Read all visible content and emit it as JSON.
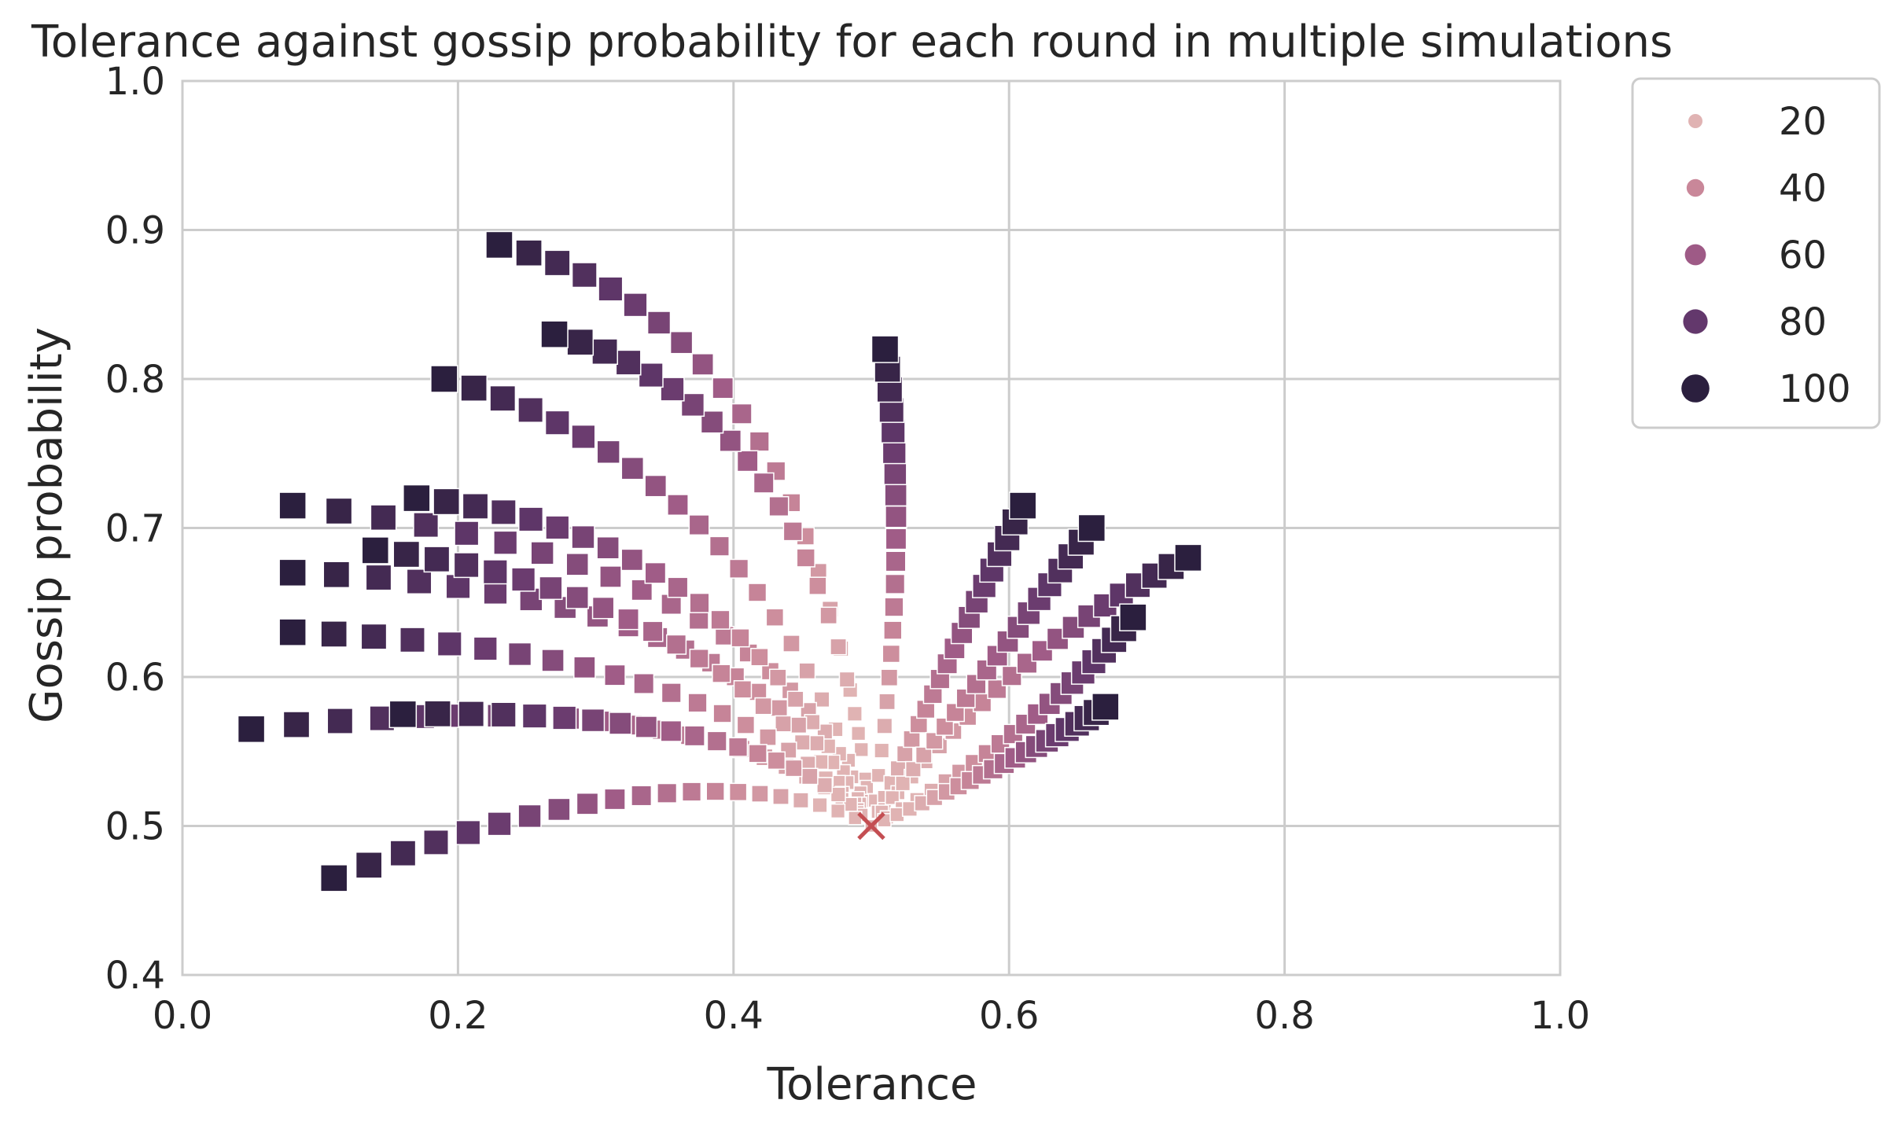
{
  "chart_data": {
    "type": "scatter",
    "title": "Tolerance against gossip probability for each round in multiple simulations",
    "xlabel": "Tolerance",
    "ylabel": "Gossip probability",
    "xlim": [
      0.0,
      1.0
    ],
    "ylim": [
      0.4,
      1.0
    ],
    "xticks": [
      "0.0",
      "0.2",
      "0.4",
      "0.6",
      "0.8",
      "1.0"
    ],
    "yticks": [
      "0.4",
      "0.5",
      "0.6",
      "0.7",
      "0.8",
      "0.9",
      "1.0"
    ],
    "grid": true,
    "legend_placement": "outside-top-right",
    "legend": {
      "entries": [
        {
          "label": "20",
          "value": 20,
          "color": "#e0b3b3"
        },
        {
          "label": "40",
          "value": 40,
          "color": "#c98799"
        },
        {
          "label": "60",
          "value": 60,
          "color": "#9e5a86"
        },
        {
          "label": "80",
          "value": 80,
          "color": "#63386c"
        },
        {
          "label": "100",
          "value": 100,
          "color": "#2b1f3e"
        }
      ]
    },
    "marker": "square",
    "start_point": {
      "x": 0.5,
      "y": 0.5,
      "marker": "x",
      "color": "#c44e52"
    },
    "trajectories": [
      {
        "start": [
          0.5,
          0.5
        ],
        "end": [
          0.23,
          0.89
        ],
        "ctrl": [
          0.46,
          0.84
        ]
      },
      {
        "start": [
          0.5,
          0.5
        ],
        "end": [
          0.27,
          0.83
        ],
        "ctrl": [
          0.47,
          0.78
        ]
      },
      {
        "start": [
          0.5,
          0.5
        ],
        "end": [
          0.19,
          0.8
        ],
        "ctrl": [
          0.42,
          0.74
        ]
      },
      {
        "start": [
          0.5,
          0.5
        ],
        "end": [
          0.08,
          0.715
        ],
        "ctrl": [
          0.44,
          0.68
        ]
      },
      {
        "start": [
          0.5,
          0.5
        ],
        "end": [
          0.17,
          0.72
        ],
        "ctrl": [
          0.4,
          0.7
        ]
      },
      {
        "start": [
          0.5,
          0.5
        ],
        "end": [
          0.08,
          0.67
        ],
        "ctrl": [
          0.42,
          0.66
        ]
      },
      {
        "start": [
          0.5,
          0.5
        ],
        "end": [
          0.14,
          0.685
        ],
        "ctrl": [
          0.38,
          0.66
        ]
      },
      {
        "start": [
          0.5,
          0.5
        ],
        "end": [
          0.08,
          0.63
        ],
        "ctrl": [
          0.4,
          0.62
        ]
      },
      {
        "start": [
          0.5,
          0.5
        ],
        "end": [
          0.05,
          0.565
        ],
        "ctrl": [
          0.4,
          0.6
        ]
      },
      {
        "start": [
          0.5,
          0.5
        ],
        "end": [
          0.16,
          0.575
        ],
        "ctrl": [
          0.43,
          0.58
        ]
      },
      {
        "start": [
          0.5,
          0.5
        ],
        "end": [
          0.11,
          0.465
        ],
        "ctrl": [
          0.38,
          0.56
        ]
      },
      {
        "start": [
          0.5,
          0.5
        ],
        "end": [
          0.51,
          0.82
        ],
        "ctrl": [
          0.53,
          0.68
        ]
      },
      {
        "start": [
          0.5,
          0.5
        ],
        "end": [
          0.61,
          0.715
        ],
        "ctrl": [
          0.55,
          0.6
        ]
      },
      {
        "start": [
          0.5,
          0.5
        ],
        "end": [
          0.73,
          0.68
        ],
        "ctrl": [
          0.6,
          0.62
        ]
      },
      {
        "start": [
          0.5,
          0.5
        ],
        "end": [
          0.66,
          0.7
        ],
        "ctrl": [
          0.58,
          0.6
        ]
      },
      {
        "start": [
          0.5,
          0.5
        ],
        "end": [
          0.69,
          0.64
        ],
        "ctrl": [
          0.62,
          0.56
        ]
      },
      {
        "start": [
          0.5,
          0.5
        ],
        "end": [
          0.67,
          0.58
        ],
        "ctrl": [
          0.6,
          0.54
        ]
      }
    ]
  }
}
